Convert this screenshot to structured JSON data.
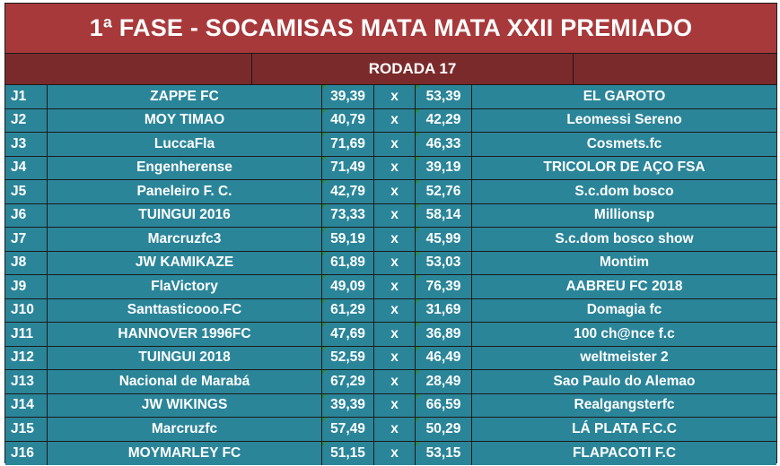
{
  "title": "1ª FASE - SOCAMISAS MATA MATA XXII PREMIADO",
  "round": "RODADA 17",
  "separator": "x",
  "matches": [
    {
      "id": "J1",
      "home": "ZAPPE FC",
      "home_score": "39,39",
      "away_score": "53,39",
      "away": "EL GAROTO"
    },
    {
      "id": "J2",
      "home": "MOY TIMAO",
      "home_score": "40,79",
      "away_score": "42,29",
      "away": "Leomessi Sereno"
    },
    {
      "id": "J3",
      "home": "LuccaFla",
      "home_score": "71,69",
      "away_score": "46,33",
      "away": "Cosmets.fc"
    },
    {
      "id": "J4",
      "home": "Engenherense",
      "home_score": "71,49",
      "away_score": "39,19",
      "away": "TRICOLOR DE AÇO FSA"
    },
    {
      "id": "J5",
      "home": "Paneleiro F. C.",
      "home_score": "42,79",
      "away_score": "52,76",
      "away": "S.c.dom bosco"
    },
    {
      "id": "J6",
      "home": "TUINGUI 2016",
      "home_score": "73,33",
      "away_score": "58,14",
      "away": "Millionsp"
    },
    {
      "id": "J7",
      "home": "Marcruzfc3",
      "home_score": "59,19",
      "away_score": "45,99",
      "away": "S.c.dom bosco show"
    },
    {
      "id": "J8",
      "home": "JW KAMIKAZE",
      "home_score": "61,89",
      "away_score": "53,03",
      "away": "Montim"
    },
    {
      "id": "J9",
      "home": "FlaVictory",
      "home_score": "49,09",
      "away_score": "76,39",
      "away": "AABREU FC 2018"
    },
    {
      "id": "J10",
      "home": "Santtasticooo.FC",
      "home_score": "61,29",
      "away_score": "31,69",
      "away": "Domagia fc"
    },
    {
      "id": "J11",
      "home": "HANNOVER 1996FC",
      "home_score": "47,69",
      "away_score": "36,89",
      "away": "100 ch@nce f.c"
    },
    {
      "id": "J12",
      "home": "TUINGUI 2018",
      "home_score": "52,59",
      "away_score": "46,49",
      "away": "weltmeister 2"
    },
    {
      "id": "J13",
      "home": "Nacional de Marabá",
      "home_score": "67,29",
      "away_score": "28,49",
      "away": "Sao Paulo do Alemao"
    },
    {
      "id": "J14",
      "home": "JW WIKINGS",
      "home_score": "39,39",
      "away_score": "66,59",
      "away": "Realgangsterfc"
    },
    {
      "id": "J15",
      "home": "Marcruzfc",
      "home_score": "57,49",
      "away_score": "50,29",
      "away": "LÁ PLATA F.C.C"
    },
    {
      "id": "J16",
      "home": "MOYMARLEY FC",
      "home_score": "51,15",
      "away_score": "53,15",
      "away": "FLAPACOTI F.C"
    }
  ],
  "colors": {
    "title_bg": "#a8393b",
    "subheader_bg": "#7a2a2b",
    "row_bg": "#2b8599",
    "text": "#ffffff",
    "cell_marker": "#2f8a3f"
  }
}
